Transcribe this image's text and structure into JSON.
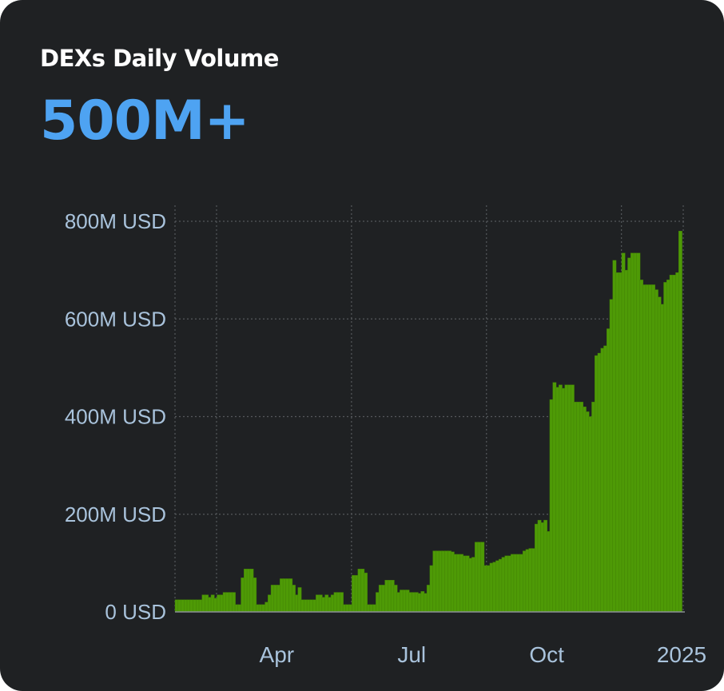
{
  "card": {
    "title": "DEXs Daily Volume",
    "headline": "500M+"
  },
  "colors": {
    "background": "#1f2123",
    "bar": "#4e9a06",
    "bar_edge": "#3f7e05",
    "headline": "#4ea3f2",
    "tick_text": "#a9c3dc",
    "grid": "#55585c"
  },
  "chart_data": {
    "type": "bar",
    "title": "DEXs Daily Volume",
    "xlabel": "",
    "ylabel": "",
    "ylim": [
      0,
      800
    ],
    "y_unit": "M USD",
    "y_ticks": [
      {
        "value": 0,
        "label": "0 USD"
      },
      {
        "value": 200,
        "label": "200M USD"
      },
      {
        "value": 400,
        "label": "400M USD"
      },
      {
        "value": 600,
        "label": "600M USD"
      },
      {
        "value": 800,
        "label": "800M USD"
      }
    ],
    "x_ticks": [
      {
        "week": 4,
        "label": "Apr"
      },
      {
        "week": 17,
        "label": "Jul"
      },
      {
        "week": 30,
        "label": "Oct"
      },
      {
        "week": 43,
        "label": "2025"
      }
    ],
    "grid": true,
    "series": [
      {
        "values": [
          25,
          25,
          25,
          25,
          25,
          25,
          25,
          25,
          25,
          35,
          35,
          30,
          35,
          28,
          35,
          35,
          40,
          40,
          40,
          40,
          15,
          15,
          70,
          88,
          88,
          88,
          70,
          15,
          15,
          15,
          20,
          35,
          55,
          55,
          55,
          68,
          68,
          68,
          68,
          55,
          35,
          50,
          25,
          25,
          25,
          25,
          25,
          35,
          35,
          30,
          35,
          30,
          35,
          40,
          40,
          40,
          15,
          15,
          15,
          75,
          75,
          88,
          88,
          80,
          15,
          15,
          15,
          40,
          55,
          55,
          65,
          65,
          65,
          55,
          40,
          45,
          45,
          45,
          40,
          40,
          40,
          38,
          42,
          38,
          55,
          95,
          125,
          125,
          125,
          125,
          125,
          125,
          123,
          118,
          118,
          118,
          115,
          115,
          110,
          112,
          143,
          143,
          143,
          95,
          95,
          100,
          102,
          105,
          108,
          112,
          115,
          115,
          118,
          118,
          118,
          118,
          125,
          128,
          130,
          130,
          180,
          188,
          183,
          188,
          165,
          435,
          470,
          460,
          465,
          458,
          465,
          465,
          465,
          430,
          430,
          430,
          420,
          410,
          400,
          430,
          525,
          530,
          540,
          545,
          580,
          640,
          720,
          695,
          695,
          735,
          700,
          725,
          735,
          735,
          735,
          680,
          670,
          670,
          670,
          670,
          660,
          645,
          630,
          675,
          680,
          690,
          690,
          695,
          780
        ]
      }
    ]
  }
}
